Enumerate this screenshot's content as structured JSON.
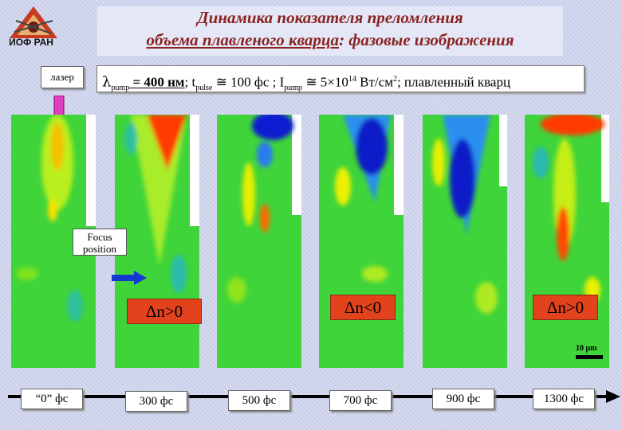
{
  "logo": {
    "text": "ИОФ РАН"
  },
  "title": {
    "line1": "Динамика показателя преломления",
    "line2_underlined": "объема плавленого кварца",
    "line2_rest": ": фазовые изображения"
  },
  "laser_label": "лазер",
  "params": {
    "lambda": "λ",
    "lambda_sub": "pump",
    "lambda_val": " = 400 нм",
    "t": "; t",
    "t_sub": "pulse",
    "t_val": " ≅ 100 фс ; I",
    "i_sub": "pump",
    "i_val": " ≅ 5×10",
    "i_sup": "14",
    "unit": " Вт/см",
    "unit_sup": "2",
    "material": "; плавленный кварц"
  },
  "focus_label": "Focus position",
  "annotations": [
    "Δn>0",
    "Δn<0",
    "Δn>0"
  ],
  "scale_label": "10 μm",
  "time_labels": [
    "“0” фс",
    "300 фс",
    "500 фс",
    "700 фс",
    "900 фс",
    "1300 фс"
  ],
  "colors": {
    "green": "#2fd43a",
    "red": "#ff2a00",
    "blue": "#0a1fd0",
    "yellow": "#f2f200",
    "accent": "#8a2322"
  }
}
